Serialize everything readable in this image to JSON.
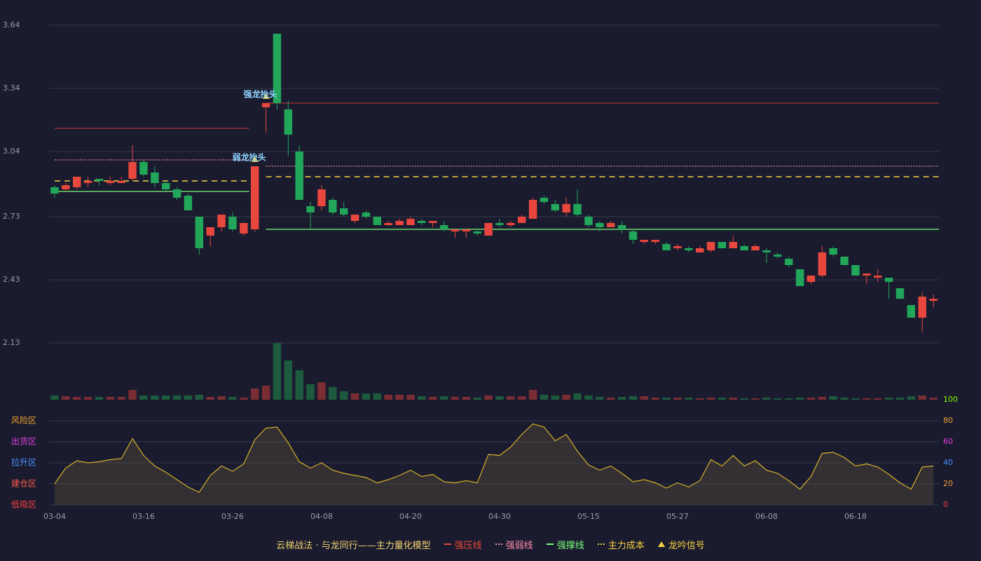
{
  "chart_data": {
    "type": "candlestick",
    "categories": [
      "03-04",
      null,
      null,
      null,
      null,
      null,
      null,
      null,
      "03-16",
      null,
      null,
      null,
      null,
      null,
      null,
      null,
      "03-26",
      null,
      null,
      null,
      null,
      null,
      null,
      null,
      "04-08",
      null,
      null,
      null,
      null,
      null,
      null,
      null,
      "04-20",
      null,
      null,
      null,
      null,
      null,
      null,
      null,
      "04-30",
      null,
      null,
      null,
      null,
      null,
      null,
      null,
      "05-15",
      null,
      null,
      null,
      null,
      null,
      null,
      null,
      "05-27",
      null,
      null,
      null,
      null,
      null,
      null,
      null,
      "06-08",
      null,
      null,
      null,
      null,
      null,
      null,
      null,
      "06-18",
      null,
      null,
      null,
      null,
      null,
      null,
      null
    ],
    "open": [
      2.87,
      2.86,
      2.87,
      2.89,
      2.91,
      2.89,
      2.89,
      2.91,
      2.99,
      2.94,
      2.89,
      2.86,
      2.83,
      2.73,
      2.64,
      2.68,
      2.73,
      2.65,
      2.67,
      3.25,
      3.6,
      3.24,
      3.04,
      2.78,
      2.78,
      2.81,
      2.77,
      2.71,
      2.75,
      2.73,
      2.69,
      2.69,
      2.69,
      2.71,
      2.7,
      2.69,
      2.66,
      2.66,
      2.66,
      2.64,
      2.7,
      2.69,
      2.7,
      2.72,
      2.82,
      2.79,
      2.75,
      2.79,
      2.73,
      2.7,
      2.68,
      2.69,
      2.66,
      2.61,
      2.61,
      2.6,
      2.58,
      2.58,
      2.56,
      2.57,
      2.61,
      2.58,
      2.59,
      2.57,
      2.57,
      2.55,
      2.53,
      2.48,
      2.42,
      2.45,
      2.58,
      2.54,
      2.5,
      2.45,
      2.44,
      2.44,
      2.39,
      2.31,
      2.25,
      2.33
    ],
    "high": [
      2.88,
      2.89,
      2.92,
      2.92,
      2.91,
      2.92,
      2.92,
      3.07,
      3.0,
      2.97,
      2.9,
      2.87,
      2.84,
      2.73,
      2.68,
      2.74,
      2.75,
      2.7,
      2.97,
      3.27,
      3.6,
      3.28,
      3.07,
      2.8,
      2.88,
      2.82,
      2.8,
      2.74,
      2.76,
      2.73,
      2.71,
      2.72,
      2.73,
      2.72,
      2.71,
      2.71,
      2.67,
      2.67,
      2.67,
      2.7,
      2.72,
      2.71,
      2.74,
      2.82,
      2.83,
      2.81,
      2.82,
      2.86,
      2.74,
      2.71,
      2.71,
      2.71,
      2.67,
      2.62,
      2.62,
      2.61,
      2.6,
      2.59,
      2.59,
      2.61,
      2.61,
      2.64,
      2.6,
      2.6,
      2.58,
      2.56,
      2.54,
      2.48,
      2.45,
      2.59,
      2.59,
      2.54,
      2.5,
      2.46,
      2.48,
      2.44,
      2.39,
      2.31,
      2.37,
      2.36
    ],
    "low": [
      2.82,
      2.85,
      2.86,
      2.87,
      2.88,
      2.88,
      2.89,
      2.9,
      2.92,
      2.87,
      2.85,
      2.81,
      2.76,
      2.55,
      2.59,
      2.66,
      2.66,
      2.64,
      2.66,
      3.13,
      3.24,
      3.02,
      2.81,
      2.67,
      2.76,
      2.74,
      2.73,
      2.7,
      2.72,
      2.69,
      2.69,
      2.69,
      2.69,
      2.69,
      2.68,
      2.66,
      2.63,
      2.63,
      2.64,
      2.64,
      2.68,
      2.68,
      2.7,
      2.72,
      2.79,
      2.75,
      2.73,
      2.73,
      2.68,
      2.66,
      2.68,
      2.65,
      2.6,
      2.6,
      2.6,
      2.57,
      2.57,
      2.56,
      2.56,
      2.56,
      2.58,
      2.58,
      2.57,
      2.57,
      2.51,
      2.53,
      2.49,
      2.4,
      2.41,
      2.44,
      2.54,
      2.5,
      2.45,
      2.41,
      2.42,
      2.34,
      2.34,
      2.25,
      2.18,
      2.3
    ],
    "close": [
      2.84,
      2.88,
      2.92,
      2.9,
      2.9,
      2.9,
      2.9,
      2.99,
      2.93,
      2.89,
      2.86,
      2.82,
      2.76,
      2.58,
      2.68,
      2.74,
      2.67,
      2.7,
      2.97,
      3.27,
      3.27,
      3.12,
      2.81,
      2.75,
      2.86,
      2.75,
      2.74,
      2.74,
      2.73,
      2.69,
      2.7,
      2.71,
      2.72,
      2.7,
      2.71,
      2.67,
      2.67,
      2.67,
      2.65,
      2.7,
      2.69,
      2.7,
      2.73,
      2.81,
      2.8,
      2.76,
      2.79,
      2.74,
      2.69,
      2.68,
      2.7,
      2.67,
      2.62,
      2.62,
      2.62,
      2.57,
      2.59,
      2.57,
      2.58,
      2.61,
      2.58,
      2.61,
      2.57,
      2.59,
      2.56,
      2.54,
      2.5,
      2.4,
      2.45,
      2.56,
      2.55,
      2.5,
      2.45,
      2.46,
      2.45,
      2.42,
      2.34,
      2.25,
      2.35,
      2.34
    ],
    "volume": [
      6,
      5,
      4,
      4,
      4,
      4,
      4,
      14,
      6,
      6,
      6,
      6,
      6,
      7,
      4,
      5,
      4,
      3,
      16,
      20,
      81,
      56,
      42,
      22,
      25,
      18,
      12,
      9,
      9,
      9,
      7,
      7,
      7,
      5,
      4,
      5,
      4,
      4,
      3,
      6,
      5,
      5,
      5,
      14,
      7,
      6,
      7,
      9,
      6,
      4,
      3,
      4,
      5,
      5,
      3,
      3,
      3,
      3,
      2,
      3,
      3,
      3,
      2,
      2,
      3,
      2,
      2,
      3,
      3,
      4,
      5,
      3,
      2,
      2,
      2,
      3,
      3,
      5,
      6,
      3
    ],
    "ylim": [
      2.13,
      3.64
    ],
    "yticks": [
      2.13,
      2.43,
      2.73,
      3.04,
      3.34,
      3.64
    ],
    "grid": true,
    "up_color": "#e8473d",
    "down_color": "#21a65a",
    "levels": [
      {
        "name": "强压线",
        "color": "#e8473d",
        "line_color": "#a8343a",
        "style": "solid",
        "segments": [
          {
            "start": 0,
            "end": 17,
            "value": 3.15
          },
          {
            "start": 19,
            "end": 79,
            "value": 3.27
          }
        ]
      },
      {
        "name": "强弱线",
        "color": "#ff8fb0",
        "line_color": "#e88aa8",
        "style": "dotted",
        "segments": [
          {
            "start": 0,
            "end": 17,
            "value": 3.0
          },
          {
            "start": 19,
            "end": 79,
            "value": 2.97
          }
        ]
      },
      {
        "name": "强撑线",
        "color": "#7dff7d",
        "line_color": "#7dff7d",
        "style": "solid",
        "segments": [
          {
            "start": 0,
            "end": 17,
            "value": 2.85
          },
          {
            "start": 19,
            "end": 79,
            "value": 2.67
          }
        ]
      },
      {
        "name": "主力成本",
        "color": "#f5d142",
        "line_color": "#f5d142",
        "style": "dashed",
        "segments": [
          {
            "start": 0,
            "end": 17,
            "value": 2.9
          },
          {
            "start": 19,
            "end": 79,
            "value": 2.92
          }
        ]
      }
    ],
    "signal": {
      "name": "龙吟信号",
      "color": "#f5d142"
    },
    "annotations": [
      {
        "text": "弱龙抬头",
        "index": 18,
        "value": 2.97
      },
      {
        "text": "强龙抬头",
        "index": 19,
        "value": 3.27
      }
    ],
    "legend_title": "云梯战法 · 与龙同行——主力量化模型",
    "indicator": {
      "type": "line",
      "color": "#d4b12a",
      "values": [
        20,
        35,
        42,
        40,
        41,
        43,
        44,
        63,
        47,
        37,
        31,
        24,
        17,
        12,
        28,
        37,
        32,
        39,
        62,
        73,
        74,
        59,
        41,
        35,
        40,
        33,
        30,
        28,
        26,
        21,
        24,
        28,
        33,
        27,
        29,
        22,
        21,
        23,
        21,
        48,
        47,
        55,
        67,
        77,
        74,
        61,
        67,
        51,
        38,
        33,
        37,
        30,
        22,
        24,
        21,
        16,
        21,
        17,
        23,
        43,
        37,
        47,
        37,
        42,
        33,
        30,
        23,
        15,
        27,
        49,
        50,
        45,
        37,
        39,
        36,
        29,
        21,
        15,
        36,
        37
      ],
      "ylim": [
        0,
        100
      ],
      "yticks": [
        {
          "value": 80,
          "label": "风险区",
          "color": "#f0a030"
        },
        {
          "value": 60,
          "label": "出货区",
          "color": "#e040e0"
        },
        {
          "value": 40,
          "label": "拉升区",
          "color": "#4a90ff"
        },
        {
          "value": 20,
          "label": "建仓区",
          "color": "#ff5a4a"
        },
        {
          "value": 0,
          "label": "低吸区",
          "color": "#ff4040"
        }
      ],
      "y2ticks": [
        100,
        80,
        60,
        40,
        20,
        0
      ],
      "y2tick_colors": [
        "#7cfc00",
        "#f0a030",
        "#e040e0",
        "#4a90ff",
        "#f0a030",
        "#ff4040"
      ]
    }
  }
}
